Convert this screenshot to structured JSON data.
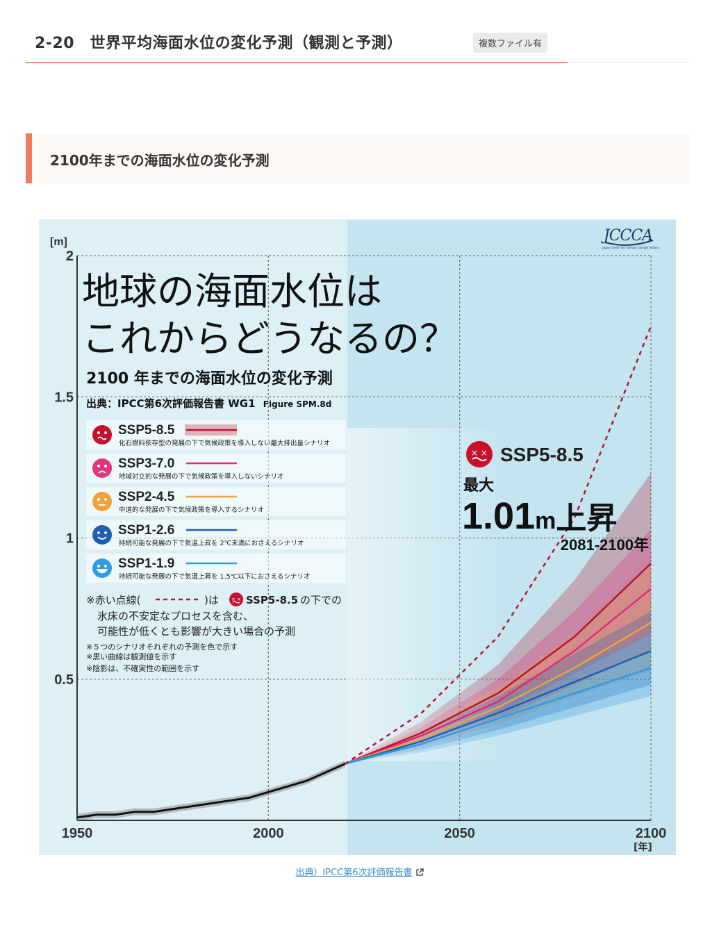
{
  "header": {
    "title": "2-20　世界平均海面水位の変化予測（観測と予測）",
    "badge": "複数ファイル有"
  },
  "section": {
    "title": "2100年までの海面水位の変化予測"
  },
  "caption": {
    "link_text": "出典）IPCC第6次評価報告書"
  },
  "figure": {
    "logo_text": "JCCCA",
    "logo_subtext": "Japan Center for Climate Change Actions",
    "headline_line1": "地球の海面水位は",
    "headline_line2": "これからどうなるの？",
    "subtitle": "2100 年までの海面水位の変化予測",
    "source_prefix": "出典：IPCC第6次評価報告書 WG1",
    "source_suffix": "Figure SPM.8d",
    "note_main_prefix": "※赤い点線(",
    "note_main_mid": ")は",
    "note_main_scenario": "SSP5-8.5",
    "note_main_after": "の下での",
    "note_line2": "氷床の不安定なプロセスを含む、",
    "note_line3": "可能性が低くとも影響が大きい場合の予測",
    "note_small1": "※５つのシナリオそれぞれの予測を色で示す",
    "note_small2": "※黒い曲線は観測値を示す",
    "note_small3": "※陰影は、不確実性の範囲を示す",
    "callout_scenario": "SSP5-8.5",
    "callout_max": "最大",
    "callout_value": "1.01",
    "callout_unit": "m",
    "callout_rise": "上昇",
    "callout_period": "2081-2100年",
    "colors": {
      "ssp585": "#b5162b",
      "ssp370": "#e0297a",
      "ssp245": "#f2a23c",
      "ssp126": "#1d5fb0",
      "ssp119": "#2f9be3",
      "observed": "#111111",
      "panel_left": "#dcf0f6",
      "panel_right": "#c4e4ef"
    }
  },
  "chart_data": {
    "type": "line",
    "xlabel": "[年]",
    "ylabel": "[m]",
    "xlim": [
      1950,
      2100
    ],
    "ylim": [
      0,
      2
    ],
    "x_ticks": [
      "1950",
      "2000",
      "2050",
      "2100"
    ],
    "y_ticks": [
      "0.5",
      "1",
      "1.5",
      "2"
    ],
    "grid": true,
    "legend": "left",
    "series": [
      {
        "name": "SSP5-8.5",
        "desc": "化石燃料依存型の発展の下で気候政策を導入しない最大排出量シナリオ",
        "color": "#b5162b",
        "x": [
          2020,
          2040,
          2060,
          2080,
          2100
        ],
        "y": [
          0.2,
          0.31,
          0.45,
          0.65,
          0.91
        ],
        "low": [
          0.2,
          0.28,
          0.38,
          0.52,
          0.66
        ],
        "high": [
          0.2,
          0.35,
          0.55,
          0.85,
          1.23
        ]
      },
      {
        "name": "SSP3-7.0",
        "desc": "地域対立的な発展の下で気候政策を導入しないシナリオ",
        "color": "#e0297a",
        "x": [
          2020,
          2040,
          2060,
          2080,
          2100
        ],
        "y": [
          0.2,
          0.3,
          0.42,
          0.6,
          0.82
        ],
        "low": [
          0.2,
          0.27,
          0.36,
          0.48,
          0.6
        ],
        "high": [
          0.2,
          0.33,
          0.5,
          0.74,
          1.03
        ]
      },
      {
        "name": "SSP2-4.5",
        "desc": "中道的な発展の下で気候政策を導入するシナリオ",
        "color": "#f2a23c",
        "x": [
          2020,
          2040,
          2060,
          2080,
          2100
        ],
        "y": [
          0.2,
          0.29,
          0.4,
          0.54,
          0.7
        ],
        "low": [
          0.2,
          0.26,
          0.34,
          0.44,
          0.53
        ],
        "high": [
          0.2,
          0.32,
          0.47,
          0.66,
          0.9
        ]
      },
      {
        "name": "SSP1-2.6",
        "desc": "持続可能な発展の下で気温上昇を 2℃未満におさえるシナリオ",
        "color": "#1d5fb0",
        "x": [
          2020,
          2040,
          2060,
          2080,
          2100
        ],
        "y": [
          0.2,
          0.28,
          0.38,
          0.49,
          0.6
        ],
        "low": [
          0.2,
          0.25,
          0.32,
          0.4,
          0.48
        ],
        "high": [
          0.2,
          0.31,
          0.44,
          0.59,
          0.74
        ]
      },
      {
        "name": "SSP1-1.9",
        "desc": "持続可能な発展の下で気温上昇を 1.5℃以下におさえるシナリオ",
        "color": "#2f9be3",
        "x": [
          2020,
          2040,
          2060,
          2080,
          2100
        ],
        "y": [
          0.2,
          0.27,
          0.36,
          0.45,
          0.54
        ],
        "low": [
          0.2,
          0.24,
          0.3,
          0.37,
          0.44
        ],
        "high": [
          0.2,
          0.3,
          0.42,
          0.54,
          0.66
        ]
      },
      {
        "name": "SSP5-8.5 low-likelihood, high-impact",
        "color": "#b5162b",
        "style": "dashed",
        "x": [
          2020,
          2040,
          2060,
          2080,
          2100
        ],
        "y": [
          0.2,
          0.38,
          0.65,
          1.07,
          1.75
        ]
      },
      {
        "name": "observed",
        "color": "#111111",
        "x": [
          1950,
          1955,
          1960,
          1965,
          1970,
          1975,
          1980,
          1985,
          1990,
          1995,
          2000,
          2005,
          2010,
          2015,
          2020
        ],
        "y": [
          0.01,
          0.02,
          0.02,
          0.03,
          0.03,
          0.04,
          0.05,
          0.06,
          0.07,
          0.08,
          0.1,
          0.12,
          0.14,
          0.17,
          0.2
        ]
      }
    ]
  }
}
